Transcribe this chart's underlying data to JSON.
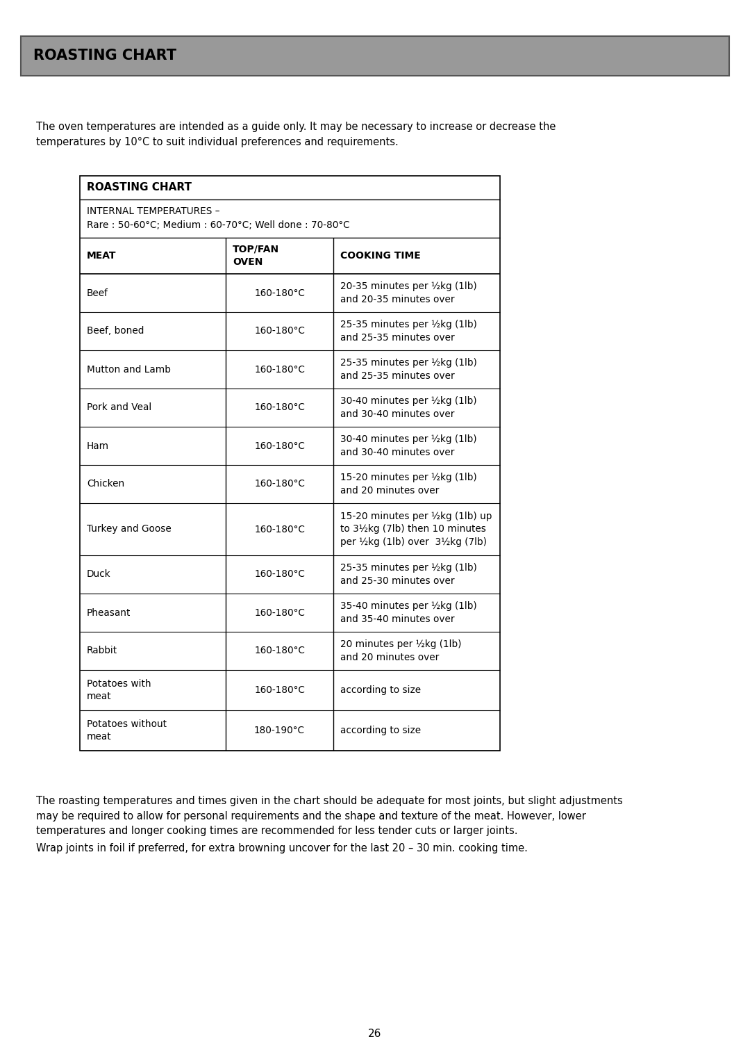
{
  "page_title": "ROASTING CHART",
  "header_bg": "#999999",
  "header_border": "#555555",
  "intro_text_line1": "The oven temperatures are intended as a guide only. It may be necessary to increase or decrease the",
  "intro_text_line2": "temperatures by 10°C to suit individual preferences and requirements.",
  "table_title": "ROASTING CHART",
  "internal_temps_line1": "INTERNAL TEMPERATURES –",
  "internal_temps_line2": "Rare : 50-60°C; Medium : 60-70°C; Well done : 70-80°C",
  "col_headers": [
    "MEAT",
    "TOP/FAN\nOVEN",
    "COOKING TIME"
  ],
  "rows": [
    [
      "Beef",
      "160-180°C",
      "20-35 minutes per ½kg (1lb)\nand 20-35 minutes over"
    ],
    [
      "Beef, boned",
      "160-180°C",
      "25-35 minutes per ½kg (1lb)\nand 25-35 minutes over"
    ],
    [
      "Mutton and Lamb",
      "160-180°C",
      "25-35 minutes per ½kg (1lb)\nand 25-35 minutes over"
    ],
    [
      "Pork and Veal",
      "160-180°C",
      "30-40 minutes per ½kg (1lb)\nand 30-40 minutes over"
    ],
    [
      "Ham",
      "160-180°C",
      "30-40 minutes per ½kg (1lb)\nand 30-40 minutes over"
    ],
    [
      "Chicken",
      "160-180°C",
      "15-20 minutes per ½kg (1lb)\nand 20 minutes over"
    ],
    [
      "Turkey and Goose",
      "160-180°C",
      "15-20 minutes per ½kg (1lb) up\nto 3½kg (7lb) then 10 minutes\nper ½kg (1lb) over  3½kg (7lb)"
    ],
    [
      "Duck",
      "160-180°C",
      "25-35 minutes per ½kg (1lb)\nand 25-30 minutes over"
    ],
    [
      "Pheasant",
      "160-180°C",
      "35-40 minutes per ½kg (1lb)\nand 35-40 minutes over"
    ],
    [
      "Rabbit",
      "160-180°C",
      "20 minutes per ½kg (1lb)\nand 20 minutes over"
    ],
    [
      "Potatoes with\nmeat",
      "160-180°C",
      "according to size"
    ],
    [
      "Potatoes without\nmeat",
      "180-190°C",
      "according to size"
    ]
  ],
  "footer_text1": "The roasting temperatures and times given in the chart should be adequate for most joints, but slight adjustments\nmay be required to allow for personal requirements and the shape and texture of the meat. However, lower\ntemperatures and longer cooking times are recommended for less tender cuts or larger joints.",
  "footer_text2": "Wrap joints in foil if preferred, for extra browning uncover for the last 20 – 30 min. cooking time.",
  "page_number": "26",
  "bg_color": "#ffffff",
  "text_color": "#000000",
  "table_border_color": "#000000"
}
